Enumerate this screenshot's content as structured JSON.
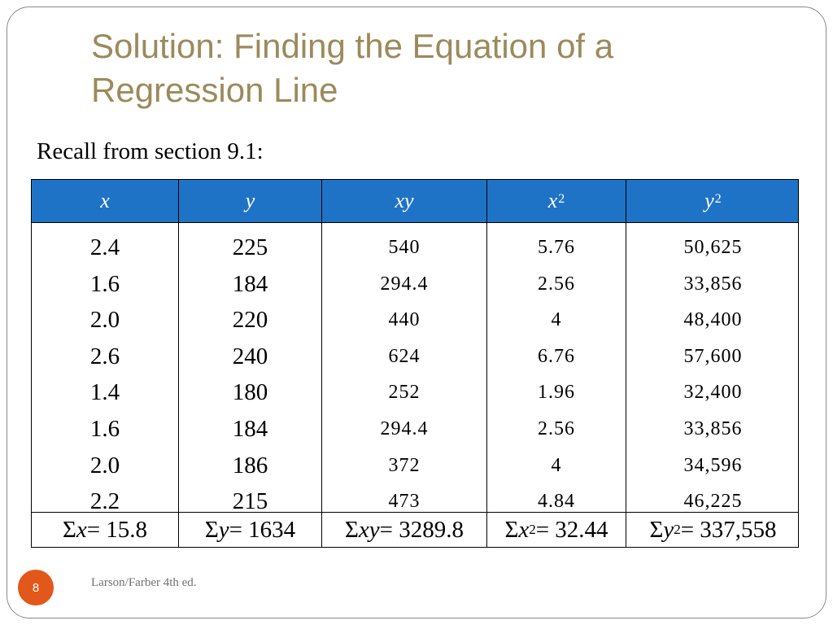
{
  "slide": {
    "title": "Solution: Finding the Equation of a Regression Line",
    "subtitle": "Recall from section 9.1:",
    "page_number": "8",
    "footer": "Larson/Farber 4th ed."
  },
  "table": {
    "headers": {
      "x": "x",
      "y": "y",
      "xy": "xy",
      "x2_base": "x",
      "x2_exp": "2",
      "y2_base": "y",
      "y2_exp": "2"
    },
    "columns": {
      "x": [
        "2.4",
        "1.6",
        "2.0",
        "2.6",
        "1.4",
        "1.6",
        "2.0",
        "2.2"
      ],
      "y": [
        "225",
        "184",
        "220",
        "240",
        "180",
        "184",
        "186",
        "215"
      ],
      "xy": [
        "540",
        "294.4",
        "440",
        "624",
        "252",
        "294.4",
        "372",
        "473"
      ],
      "x2": [
        "5.76",
        "2.56",
        "4",
        "6.76",
        "1.96",
        "2.56",
        "4",
        "4.84"
      ],
      "y2": [
        "50,625",
        "33,856",
        "48,400",
        "57,600",
        "32,400",
        "33,856",
        "34,596",
        "46,225"
      ]
    },
    "sums": {
      "sigma": "Σ",
      "x_var": "x",
      "x_val": " = 15.8",
      "y_var": "y",
      "y_val": " = 1634",
      "xy_var": "xy",
      "xy_val": " = 3289.8",
      "x2_var": "x",
      "x2_exp": "2",
      "x2_val": " = 32.44",
      "y2_var": "y",
      "y2_exp": "2",
      "y2_val": " = 337,558"
    }
  }
}
